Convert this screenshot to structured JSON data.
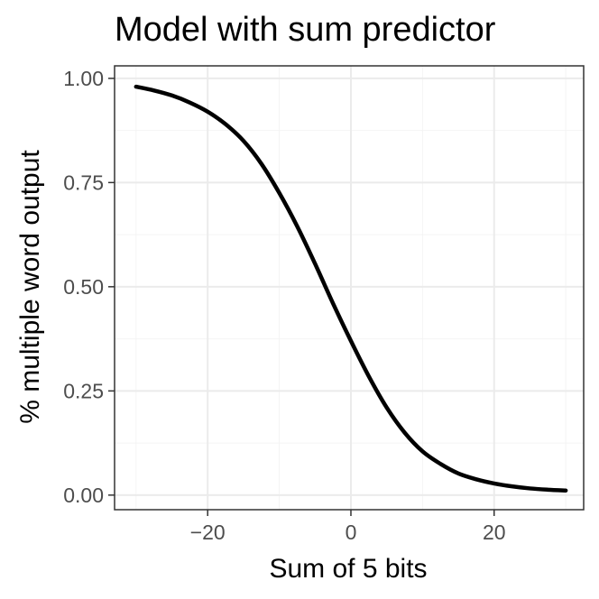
{
  "chart_data": {
    "type": "line",
    "title": "Model with sum predictor",
    "xlabel": "Sum of 5 bits",
    "ylabel": "% multiple word output",
    "xlim": [
      -33,
      32.5
    ],
    "ylim": [
      -0.035,
      1.03
    ],
    "x_ticks": [
      -20,
      0,
      20
    ],
    "x_tick_labels": [
      "−20",
      "0",
      "20"
    ],
    "y_ticks": [
      0,
      0.25,
      0.5,
      0.75,
      1
    ],
    "y_tick_labels": [
      "0.00",
      "0.25",
      "0.50",
      "0.75",
      "1.00"
    ],
    "grid": true,
    "series": [
      {
        "x": [
          -30,
          -27.5,
          -25,
          -22.5,
          -20,
          -17.5,
          -15,
          -12.5,
          -10,
          -7.5,
          -5,
          -2.5,
          0,
          2.5,
          5,
          7.5,
          10,
          12.5,
          15,
          17.5,
          20,
          22.5,
          25,
          27.5,
          30
        ],
        "y": [
          0.98,
          0.971,
          0.959,
          0.942,
          0.92,
          0.89,
          0.85,
          0.795,
          0.725,
          0.645,
          0.555,
          0.46,
          0.37,
          0.285,
          0.21,
          0.15,
          0.105,
          0.075,
          0.052,
          0.038,
          0.028,
          0.021,
          0.016,
          0.013,
          0.011
        ]
      }
    ]
  }
}
